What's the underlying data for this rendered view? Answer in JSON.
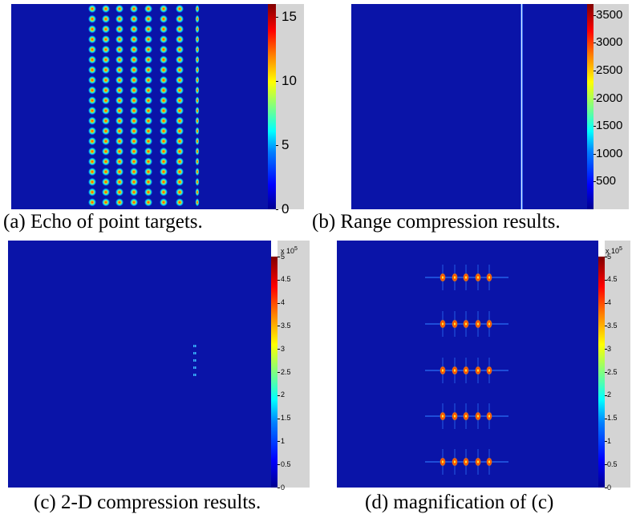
{
  "panels": [
    {
      "caption": "(a) Echo of point targets.",
      "colorbar_ticks": [
        "15",
        "10",
        "5",
        "0"
      ],
      "colorbar_max": 16
    },
    {
      "caption": "(b) Range compression results.",
      "colorbar_ticks": [
        "3500",
        "3000",
        "2500",
        "2000",
        "1500",
        "1000",
        "500"
      ],
      "colorbar_max": 3700
    },
    {
      "caption": "(c) 2-D compression results.",
      "colorbar_exponent_base": "x 10",
      "colorbar_exponent_power": "5",
      "colorbar_ticks": [
        "5",
        "4.5",
        "4",
        "3.5",
        "3",
        "2.5",
        "2",
        "1.5",
        "1",
        "0.5",
        "0"
      ],
      "colorbar_max": 5
    },
    {
      "caption": "(d) magnification of (c)",
      "colorbar_exponent_base": "x 10",
      "colorbar_exponent_power": "5",
      "colorbar_ticks": [
        "5",
        "4.5",
        "4",
        "3.5",
        "3",
        "2.5",
        "2",
        "1.5",
        "1",
        "0.5",
        "0"
      ],
      "colorbar_max": 5
    }
  ],
  "colors": {
    "background_blue": "#0a14a8",
    "colorbar_bg": "#d4d4d4"
  }
}
